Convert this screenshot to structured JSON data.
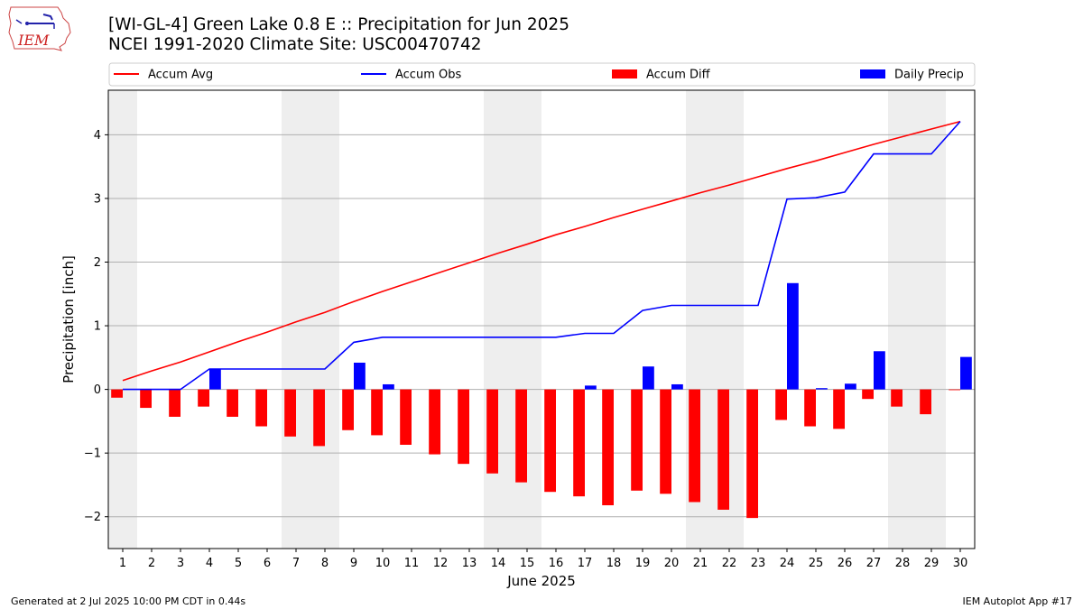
{
  "header": {
    "title_line1": "[WI-GL-4] Green Lake 0.8 E :: Precipitation for Jun 2025",
    "title_line2": "NCEI 1991-2020 Climate Site: USC00470742",
    "logo_text": "IEM"
  },
  "footer": {
    "left": "Generated at 2 Jul 2025 10:00 PM CDT in 0.44s",
    "right": "IEM Autoplot App #17"
  },
  "colors": {
    "avg": "#ff0000",
    "obs": "#0000ff",
    "diff": "#ff0000",
    "precip": "#0000ff",
    "weekend": "#eeeeee",
    "grid": "#b0b0b0"
  },
  "chart_data": {
    "type": "bar",
    "xlabel": "June 2025",
    "ylabel": "Precipitation [inch]",
    "ylim": [
      -2.5,
      4.7
    ],
    "yticks": [
      -2,
      -1,
      0,
      1,
      2,
      3,
      4
    ],
    "grid": "horizontal",
    "legend_position": "top",
    "x": [
      1,
      2,
      3,
      4,
      5,
      6,
      7,
      8,
      9,
      10,
      11,
      12,
      13,
      14,
      15,
      16,
      17,
      18,
      19,
      20,
      21,
      22,
      23,
      24,
      25,
      26,
      27,
      28,
      29,
      30
    ],
    "weekend_days": [
      1,
      7,
      8,
      14,
      15,
      21,
      22,
      28,
      29
    ],
    "series": [
      {
        "name": "Accum Avg",
        "kind": "line",
        "values": [
          0.14,
          0.29,
          0.43,
          0.59,
          0.75,
          0.9,
          1.06,
          1.21,
          1.38,
          1.54,
          1.69,
          1.84,
          1.99,
          2.14,
          2.28,
          2.43,
          2.56,
          2.7,
          2.83,
          2.96,
          3.09,
          3.21,
          3.34,
          3.47,
          3.59,
          3.72,
          3.85,
          3.97,
          4.09,
          4.21
        ]
      },
      {
        "name": "Accum Obs",
        "kind": "line",
        "values": [
          0,
          0,
          0,
          0.32,
          0.32,
          0.32,
          0.32,
          0.32,
          0.74,
          0.82,
          0.82,
          0.82,
          0.82,
          0.82,
          0.82,
          0.82,
          0.88,
          0.88,
          1.24,
          1.32,
          1.32,
          1.32,
          1.32,
          2.99,
          3.01,
          3.1,
          3.7,
          3.7,
          3.7,
          4.21
        ]
      },
      {
        "name": "Accum Diff",
        "kind": "bar",
        "values": [
          -0.13,
          -0.29,
          -0.43,
          -0.27,
          -0.43,
          -0.58,
          -0.74,
          -0.89,
          -0.64,
          -0.72,
          -0.87,
          -1.02,
          -1.17,
          -1.32,
          -1.46,
          -1.61,
          -1.68,
          -1.82,
          -1.59,
          -1.64,
          -1.77,
          -1.89,
          -2.02,
          -0.48,
          -0.58,
          -0.62,
          -0.15,
          -0.27,
          -0.39,
          0.0
        ]
      },
      {
        "name": "Daily Precip",
        "kind": "bar",
        "values": [
          0,
          0,
          0,
          0.32,
          0,
          0,
          0,
          0,
          0.42,
          0.08,
          0,
          0,
          0,
          0,
          0,
          0,
          0.06,
          0,
          0.36,
          0.08,
          0,
          0,
          0,
          1.67,
          0.02,
          0.09,
          0.6,
          0,
          0,
          0.51
        ]
      }
    ]
  }
}
